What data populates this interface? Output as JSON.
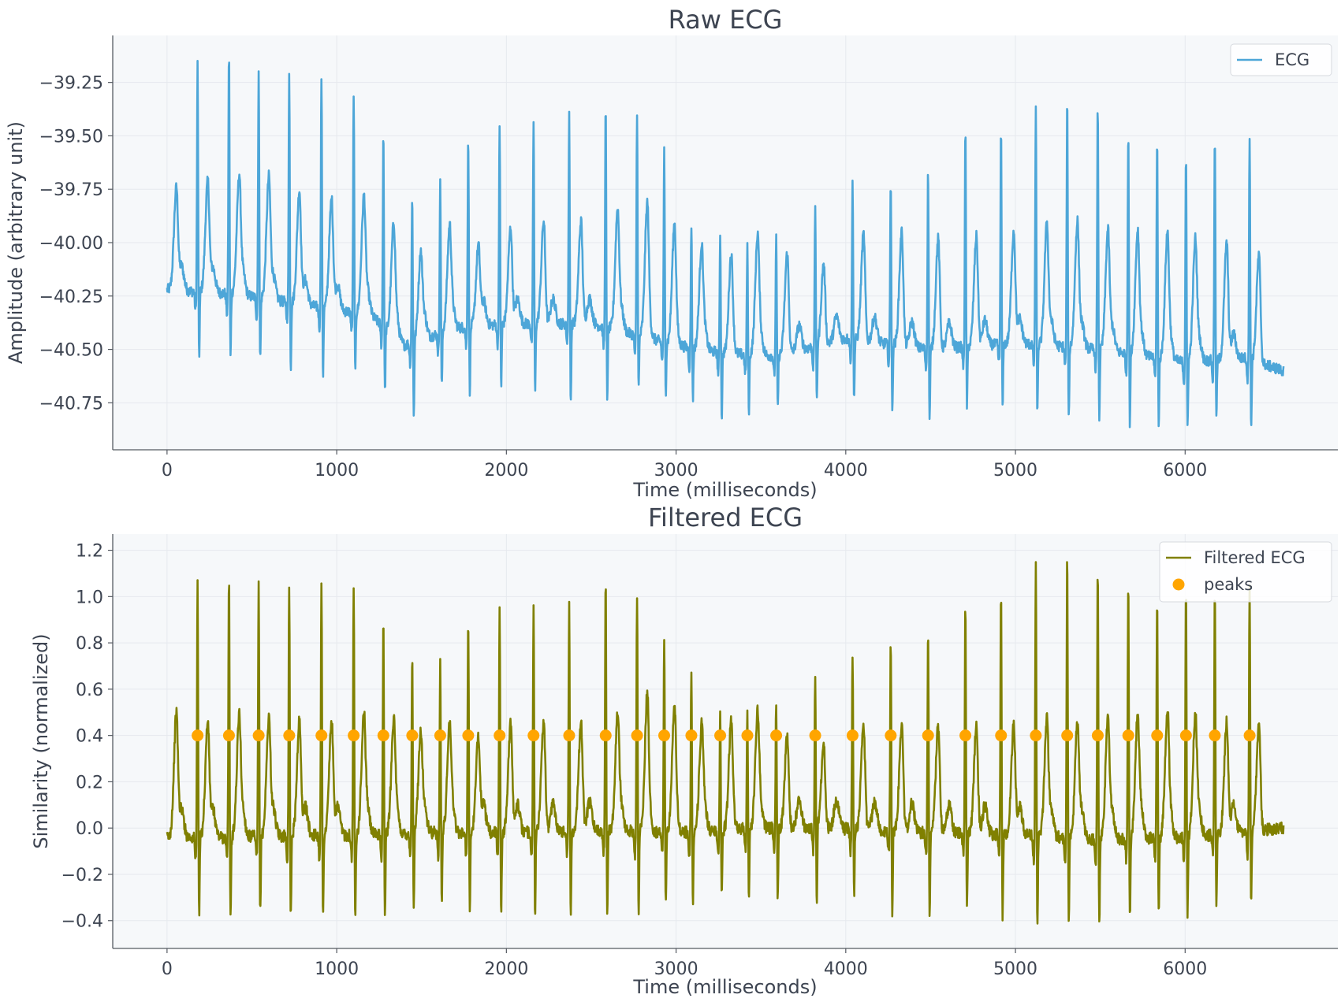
{
  "colors": {
    "plot_bg": "#f6f8fa",
    "grid": "#e6e9ee",
    "axis": "#555a62",
    "text": "#3d4451",
    "ecg": "#4da6d8",
    "filtered": "#808000",
    "peaks": "#ffa500"
  },
  "chart_data": [
    {
      "type": "line",
      "title": "Raw ECG",
      "xlabel": "Time (milliseconds)",
      "ylabel": "Amplitude (arbitrary unit)",
      "xlim": [
        -320,
        6900
      ],
      "ylim": [
        -40.97,
        -39.03
      ],
      "xticks": [
        0,
        1000,
        2000,
        3000,
        4000,
        5000,
        6000
      ],
      "xtick_labels": [
        "0",
        "1000",
        "2000",
        "3000",
        "4000",
        "5000",
        "6000"
      ],
      "yticks": [
        -39.25,
        -39.5,
        -39.75,
        -40.0,
        -40.25,
        -40.5,
        -40.75
      ],
      "ytick_labels": [
        "−39.25",
        "−39.50",
        "−39.75",
        "−40.00",
        "−40.25",
        "−40.50",
        "−40.75"
      ],
      "grid": true,
      "legend": "top-right",
      "series": [
        {
          "name": "ECG",
          "duration_ms": 6580,
          "sample_step_ms": 2,
          "baseline": [
            [
              0,
              -40.22
            ],
            [
              400,
              -40.24
            ],
            [
              800,
              -40.29
            ],
            [
              1200,
              -40.34
            ],
            [
              1400,
              -40.48
            ],
            [
              1700,
              -40.4
            ],
            [
              2000,
              -40.38
            ],
            [
              2500,
              -40.38
            ],
            [
              3000,
              -40.48
            ],
            [
              3300,
              -40.52
            ],
            [
              3600,
              -40.53
            ],
            [
              4000,
              -40.45
            ],
            [
              4500,
              -40.5
            ],
            [
              5000,
              -40.47
            ],
            [
              5500,
              -40.5
            ],
            [
              6000,
              -40.56
            ],
            [
              6350,
              -40.54
            ],
            [
              6580,
              -40.6
            ]
          ],
          "r_peaks": [
            [
              180,
              -39.16
            ],
            [
              365,
              -39.11
            ],
            [
              540,
              -39.2
            ],
            [
              720,
              -39.21
            ],
            [
              910,
              -39.22
            ],
            [
              1100,
              -39.32
            ],
            [
              1275,
              -39.48
            ],
            [
              1445,
              -39.78
            ],
            [
              1610,
              -39.72
            ],
            [
              1775,
              -39.5
            ],
            [
              1960,
              -39.45
            ],
            [
              2160,
              -39.42
            ],
            [
              2370,
              -39.39
            ],
            [
              2585,
              -39.37
            ],
            [
              2770,
              -39.4
            ],
            [
              2930,
              -39.57
            ],
            [
              3090,
              -39.91
            ],
            [
              3260,
              -39.96
            ],
            [
              3420,
              -40.02
            ],
            [
              3590,
              -39.98
            ],
            [
              3820,
              -39.83
            ],
            [
              4040,
              -39.72
            ],
            [
              4265,
              -39.7
            ],
            [
              4485,
              -39.66
            ],
            [
              4705,
              -39.47
            ],
            [
              4915,
              -39.48
            ],
            [
              5120,
              -39.36
            ],
            [
              5305,
              -39.33
            ],
            [
              5485,
              -39.36
            ],
            [
              5665,
              -39.47
            ],
            [
              5835,
              -39.52
            ],
            [
              6005,
              -39.59
            ],
            [
              6175,
              -39.49
            ],
            [
              6380,
              -39.5
            ]
          ],
          "s_troughs": [
            -40.56,
            -40.55,
            -40.56,
            -40.61,
            -40.64,
            -40.64,
            -40.71,
            -40.83,
            -40.69,
            -40.71,
            -40.7,
            -40.72,
            -40.77,
            -40.75,
            -40.7,
            -40.71,
            -40.74,
            -40.83,
            -40.8,
            -40.78,
            -40.76,
            -40.74,
            -40.82,
            -40.84,
            -40.78,
            -40.8,
            -40.82,
            -40.85,
            -40.84,
            -40.86,
            -40.87,
            -40.88,
            -40.84,
            -40.88
          ],
          "t_peaks": [
            [
              55,
              -39.75
            ],
            [
              240,
              -39.72
            ],
            [
              425,
              -39.72
            ],
            [
              600,
              -39.71
            ],
            [
              780,
              -39.76
            ],
            [
              970,
              -39.8
            ],
            [
              1160,
              -39.82
            ],
            [
              1335,
              -39.97
            ],
            [
              1495,
              -40.08
            ],
            [
              1665,
              -39.98
            ],
            [
              1835,
              -40.02
            ],
            [
              2025,
              -39.93
            ],
            [
              2220,
              -39.9
            ],
            [
              2440,
              -39.9
            ],
            [
              2655,
              -39.88
            ],
            [
              2830,
              -39.92
            ],
            [
              2990,
              -40.02
            ],
            [
              3150,
              -40.07
            ],
            [
              3325,
              -40.17
            ],
            [
              3480,
              -40.02
            ],
            [
              3655,
              -40.05
            ],
            [
              3870,
              -40.1
            ],
            [
              4105,
              -39.96
            ],
            [
              4330,
              -39.95
            ],
            [
              4545,
              -39.98
            ],
            [
              4770,
              -39.97
            ],
            [
              4990,
              -39.95
            ],
            [
              5185,
              -39.93
            ],
            [
              5365,
              -39.92
            ],
            [
              5545,
              -39.96
            ],
            [
              5720,
              -39.98
            ],
            [
              5895,
              -40.01
            ],
            [
              6060,
              -40.02
            ],
            [
              6245,
              -40.0
            ],
            [
              6435,
              -40.06
            ]
          ]
        }
      ]
    },
    {
      "type": "line",
      "title": "Filtered ECG",
      "xlabel": "Time (milliseconds)",
      "ylabel": "Similarity (normalized)",
      "xlim": [
        -320,
        6900
      ],
      "ylim": [
        -0.52,
        1.27
      ],
      "xticks": [
        0,
        1000,
        2000,
        3000,
        4000,
        5000,
        6000
      ],
      "xtick_labels": [
        "0",
        "1000",
        "2000",
        "3000",
        "4000",
        "5000",
        "6000"
      ],
      "yticks": [
        1.2,
        1.0,
        0.8,
        0.6,
        0.4,
        0.2,
        0.0,
        -0.2,
        -0.4
      ],
      "ytick_labels": [
        "1.2",
        "1.0",
        "0.8",
        "0.6",
        "0.4",
        "0.2",
        "0.0",
        "−0.2",
        "−0.4"
      ],
      "grid": true,
      "legend": "top-right",
      "series": [
        {
          "name": "Filtered ECG",
          "duration_ms": 6580,
          "sample_step_ms": 2,
          "baseline": [
            [
              0,
              -0.04
            ],
            [
              400,
              -0.04
            ],
            [
              800,
              -0.03
            ],
            [
              1200,
              -0.03
            ],
            [
              1500,
              -0.02
            ],
            [
              2000,
              -0.02
            ],
            [
              2500,
              -0.01
            ],
            [
              3000,
              -0.02
            ],
            [
              3500,
              0.0
            ],
            [
              3900,
              0.0
            ],
            [
              4500,
              -0.02
            ],
            [
              5000,
              -0.03
            ],
            [
              5500,
              -0.05
            ],
            [
              6000,
              -0.04
            ],
            [
              6580,
              0.0
            ]
          ],
          "r_peaks": [
            [
              180,
              1.06
            ],
            [
              365,
              1.09
            ],
            [
              540,
              1.05
            ],
            [
              720,
              1.06
            ],
            [
              910,
              1.06
            ],
            [
              1100,
              1.03
            ],
            [
              1275,
              0.9
            ],
            [
              1445,
              0.74
            ],
            [
              1610,
              0.72
            ],
            [
              1775,
              0.92
            ],
            [
              1960,
              0.94
            ],
            [
              2160,
              0.96
            ],
            [
              2370,
              0.96
            ],
            [
              2585,
              1.09
            ],
            [
              2770,
              1.02
            ],
            [
              2930,
              0.83
            ],
            [
              3090,
              0.68
            ],
            [
              3260,
              0.5
            ],
            [
              3420,
              0.5
            ],
            [
              3590,
              0.55
            ],
            [
              3820,
              0.67
            ],
            [
              4040,
              0.76
            ],
            [
              4265,
              0.81
            ],
            [
              4485,
              0.86
            ],
            [
              4705,
              0.96
            ],
            [
              4915,
              1.02
            ],
            [
              5120,
              1.13
            ],
            [
              5305,
              1.19
            ],
            [
              5485,
              1.13
            ],
            [
              5665,
              1.05
            ],
            [
              5835,
              1.02
            ],
            [
              6005,
              1.03
            ],
            [
              6175,
              1.02
            ],
            [
              6380,
              1.04
            ]
          ],
          "s_troughs": [
            -0.4,
            -0.4,
            -0.39,
            -0.41,
            -0.41,
            -0.4,
            -0.39,
            -0.37,
            -0.33,
            -0.37,
            -0.38,
            -0.39,
            -0.4,
            -0.38,
            -0.4,
            -0.35,
            -0.33,
            -0.3,
            -0.3,
            -0.32,
            -0.35,
            -0.3,
            -0.38,
            -0.37,
            -0.37,
            -0.4,
            -0.42,
            -0.41,
            -0.44,
            -0.41,
            -0.39,
            -0.39,
            -0.37,
            -0.34
          ],
          "t_peaks": [
            [
              55,
              0.49
            ],
            [
              240,
              0.45
            ],
            [
              425,
              0.45
            ],
            [
              600,
              0.46
            ],
            [
              780,
              0.46
            ],
            [
              970,
              0.46
            ],
            [
              1160,
              0.46
            ],
            [
              1335,
              0.41
            ],
            [
              1495,
              0.38
            ],
            [
              1665,
              0.4
            ],
            [
              1835,
              0.39
            ],
            [
              2025,
              0.45
            ],
            [
              2220,
              0.46
            ],
            [
              2440,
              0.46
            ],
            [
              2655,
              0.46
            ],
            [
              2830,
              0.47
            ],
            [
              2990,
              0.43
            ],
            [
              3150,
              0.38
            ],
            [
              3325,
              0.34
            ],
            [
              3480,
              0.44
            ],
            [
              3655,
              0.4
            ],
            [
              3870,
              0.36
            ],
            [
              4105,
              0.44
            ],
            [
              4330,
              0.45
            ],
            [
              4545,
              0.44
            ],
            [
              4770,
              0.44
            ],
            [
              4990,
              0.44
            ],
            [
              5185,
              0.45
            ],
            [
              5365,
              0.44
            ],
            [
              5545,
              0.46
            ],
            [
              5720,
              0.46
            ],
            [
              5895,
              0.45
            ],
            [
              6060,
              0.45
            ],
            [
              6245,
              0.46
            ],
            [
              6435,
              0.44
            ]
          ]
        },
        {
          "name": "peaks",
          "marker": "circle",
          "x": [
            180,
            365,
            540,
            720,
            910,
            1100,
            1275,
            1445,
            1610,
            1775,
            1960,
            2160,
            2370,
            2585,
            2770,
            2930,
            3090,
            3260,
            3420,
            3590,
            3820,
            4040,
            4265,
            4485,
            4705,
            4915,
            5120,
            5305,
            5485,
            5665,
            5835,
            6005,
            6175,
            6380
          ],
          "y": [
            0.4,
            0.4,
            0.4,
            0.4,
            0.4,
            0.4,
            0.4,
            0.4,
            0.4,
            0.4,
            0.4,
            0.4,
            0.4,
            0.4,
            0.4,
            0.4,
            0.4,
            0.4,
            0.4,
            0.4,
            0.4,
            0.4,
            0.4,
            0.4,
            0.4,
            0.4,
            0.4,
            0.4,
            0.4,
            0.4,
            0.4,
            0.4,
            0.4,
            0.4
          ]
        }
      ]
    }
  ]
}
